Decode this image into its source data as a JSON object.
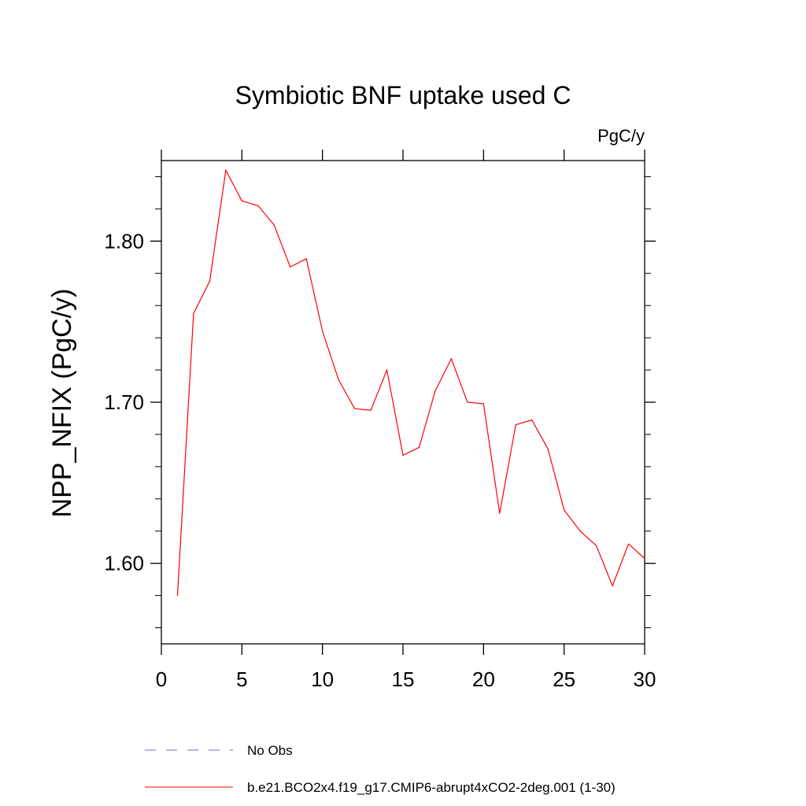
{
  "chart_data": {
    "type": "line",
    "title": "Symbiotic BNF uptake used C",
    "units_label": "PgC/y",
    "ylabel": "NPP_NFIX  (PgC/y)",
    "xlabel": "",
    "xlim": [
      0,
      30
    ],
    "ylim": [
      1.55,
      1.85
    ],
    "x_ticks": [
      0,
      5,
      10,
      15,
      20,
      25,
      30
    ],
    "x_tick_labels": [
      "0",
      "5",
      "10",
      "15",
      "20",
      "25",
      "30"
    ],
    "y_ticks": [
      1.6,
      1.7,
      1.8
    ],
    "y_tick_labels": [
      "1.60",
      "1.70",
      "1.80"
    ],
    "grid": false,
    "series": [
      {
        "name": "b.e21.BCO2x4.f19_g17.CMIP6-abrupt4xCO2-2deg.001 (1-30)",
        "color": "#ff0000",
        "dash": "solid",
        "x": [
          1,
          2,
          3,
          4,
          5,
          6,
          7,
          8,
          9,
          10,
          11,
          12,
          13,
          14,
          15,
          16,
          17,
          18,
          19,
          20,
          21,
          22,
          23,
          24,
          25,
          26,
          27,
          28,
          29,
          30
        ],
        "y": [
          1.58,
          1.755,
          1.775,
          1.844,
          1.825,
          1.822,
          1.81,
          1.784,
          1.789,
          1.744,
          1.714,
          1.696,
          1.695,
          1.72,
          1.667,
          1.672,
          1.707,
          1.727,
          1.7,
          1.699,
          1.631,
          1.686,
          1.689,
          1.671,
          1.633,
          1.62,
          1.611,
          1.586,
          1.612,
          1.603
        ]
      }
    ],
    "legend": [
      {
        "label": "No Obs",
        "color": "#6a6ad0",
        "dash": "dashed"
      },
      {
        "label": "b.e21.BCO2x4.f19_g17.CMIP6-abrupt4xCO2-2deg.001 (1-30)",
        "color": "#ff0000",
        "dash": "solid"
      }
    ],
    "legend_position": "bottom"
  }
}
